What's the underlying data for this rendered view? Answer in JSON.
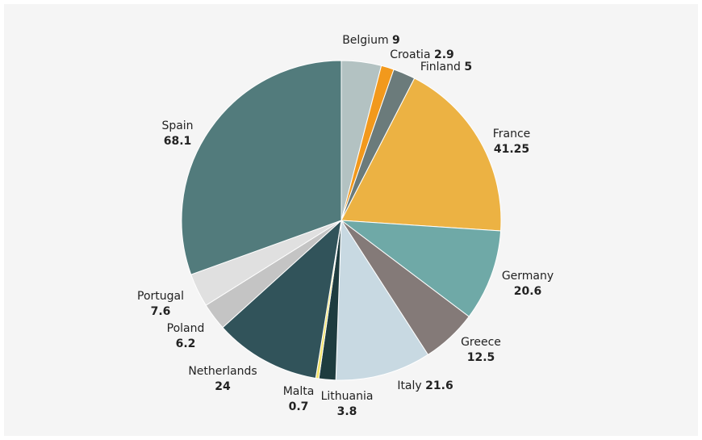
{
  "chart_data": {
    "type": "pie",
    "categories": [
      "Belgium",
      "Croatia",
      "Finland",
      "France",
      "Germany",
      "Greece",
      "Italy",
      "Lithuania",
      "Malta",
      "Netherlands",
      "Poland",
      "Portugal",
      "Spain"
    ],
    "values": [
      9,
      2.9,
      5,
      41.25,
      20.6,
      12.5,
      21.6,
      3.8,
      0.7,
      24,
      6.2,
      7.6,
      68.1
    ],
    "colors": [
      "#b3c2c2",
      "#f2991c",
      "#6b7b7b",
      "#ecb243",
      "#6fa9a7",
      "#847a78",
      "#c8d9e2",
      "#1e3c3f",
      "#f2e36b",
      "#31535a",
      "#c4c4c4",
      "#e0e0e0",
      "#527b7c"
    ]
  }
}
